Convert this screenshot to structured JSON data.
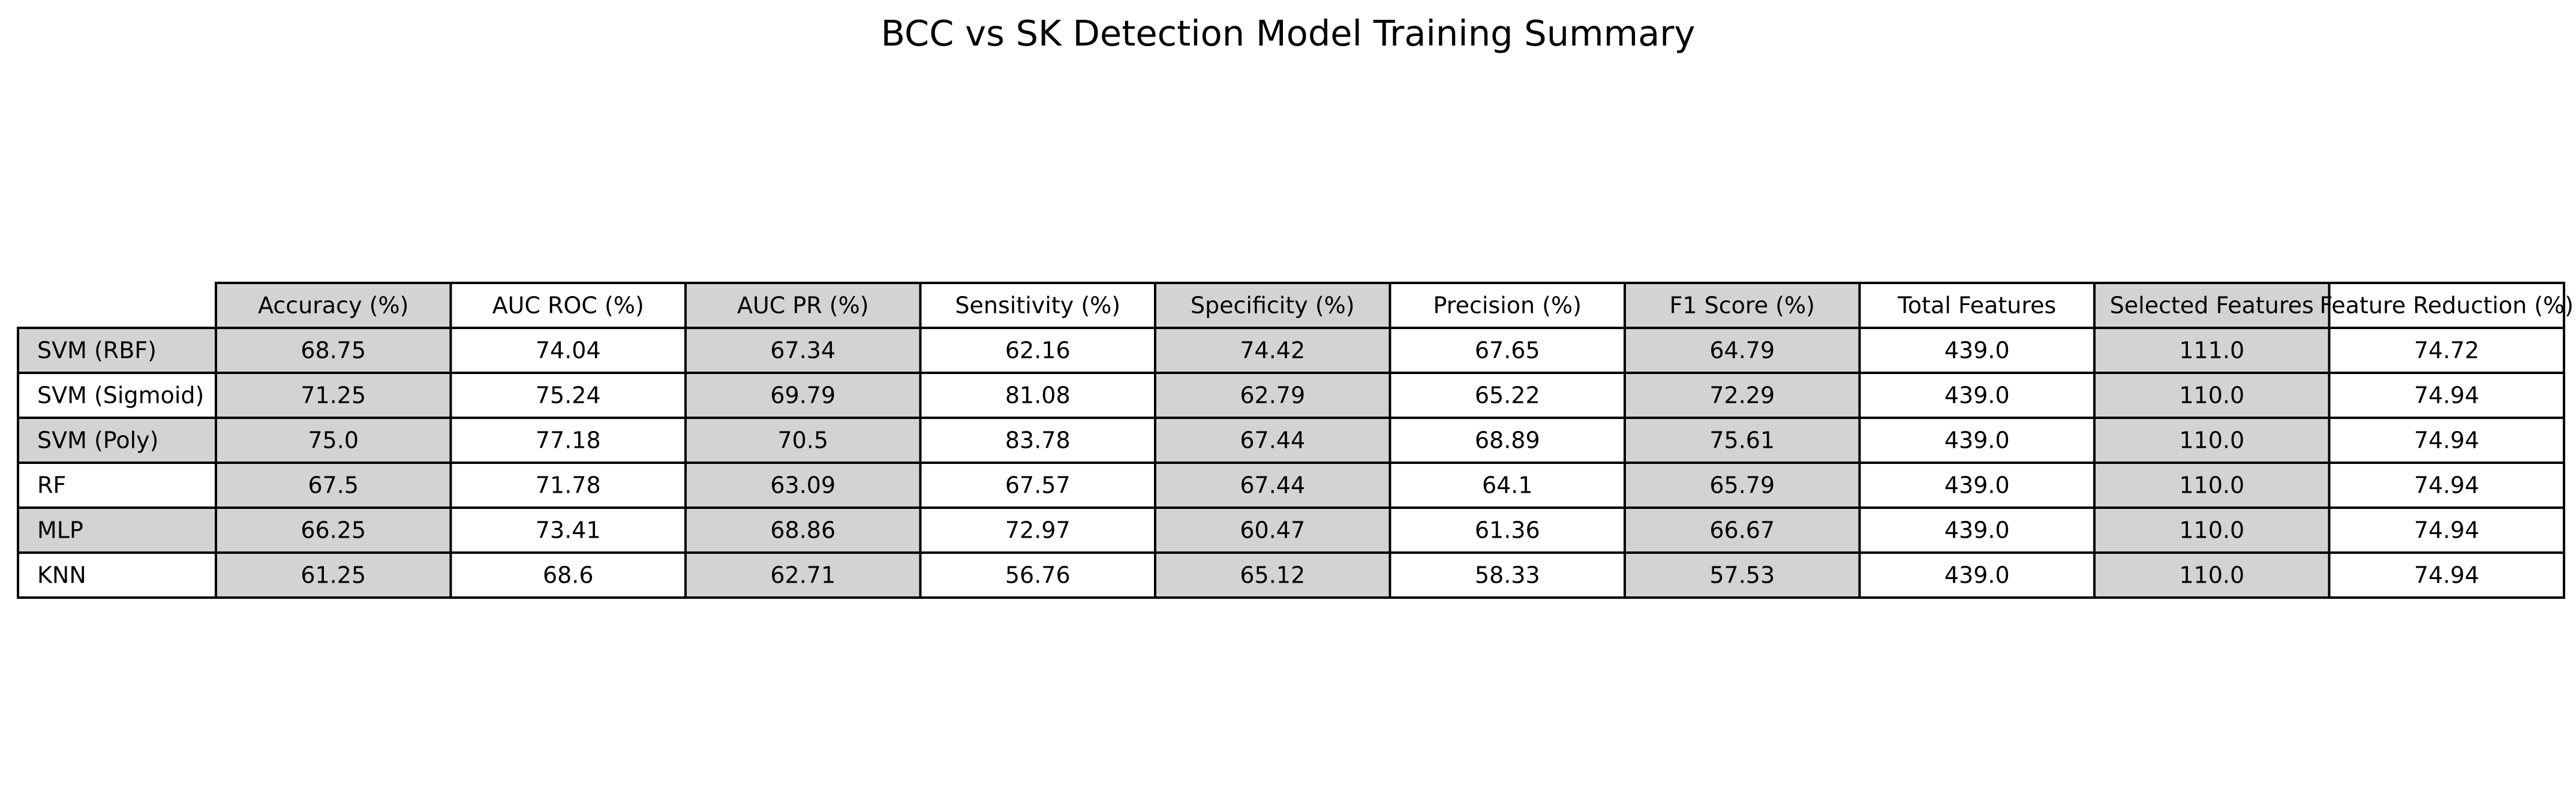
{
  "chart_data": {
    "type": "table",
    "title": "BCC vs SK Detection Model Training Summary",
    "columns": [
      "Accuracy (%)",
      "AUC ROC (%)",
      "AUC PR (%)",
      "Sensitivity (%)",
      "Specificity (%)",
      "Precision (%)",
      "F1 Score (%)",
      "Total Features",
      "Selected Features",
      "Feature Reduction (%)"
    ],
    "rows": [
      {
        "label": "SVM (RBF)",
        "values": [
          "68.75",
          "74.04",
          "67.34",
          "62.16",
          "74.42",
          "67.65",
          "64.79",
          "439.0",
          "111.0",
          "74.72"
        ]
      },
      {
        "label": "SVM (Sigmoid)",
        "values": [
          "71.25",
          "75.24",
          "69.79",
          "81.08",
          "62.79",
          "65.22",
          "72.29",
          "439.0",
          "110.0",
          "74.94"
        ]
      },
      {
        "label": "SVM (Poly)",
        "values": [
          "75.0",
          "77.18",
          "70.5",
          "83.78",
          "67.44",
          "68.89",
          "75.61",
          "439.0",
          "110.0",
          "74.94"
        ]
      },
      {
        "label": "RF",
        "values": [
          "67.5",
          "71.78",
          "63.09",
          "67.57",
          "67.44",
          "64.1",
          "65.79",
          "439.0",
          "110.0",
          "74.94"
        ]
      },
      {
        "label": "MLP",
        "values": [
          "66.25",
          "73.41",
          "68.86",
          "72.97",
          "60.47",
          "61.36",
          "66.67",
          "439.0",
          "110.0",
          "74.94"
        ]
      },
      {
        "label": "KNN",
        "values": [
          "61.25",
          "68.6",
          "62.71",
          "56.76",
          "65.12",
          "58.33",
          "57.53",
          "439.0",
          "110.0",
          "74.94"
        ]
      }
    ],
    "colors": {
      "shaded_cell": "#d3d3d3",
      "plain_cell": "#ffffff",
      "border": "#000000"
    }
  }
}
